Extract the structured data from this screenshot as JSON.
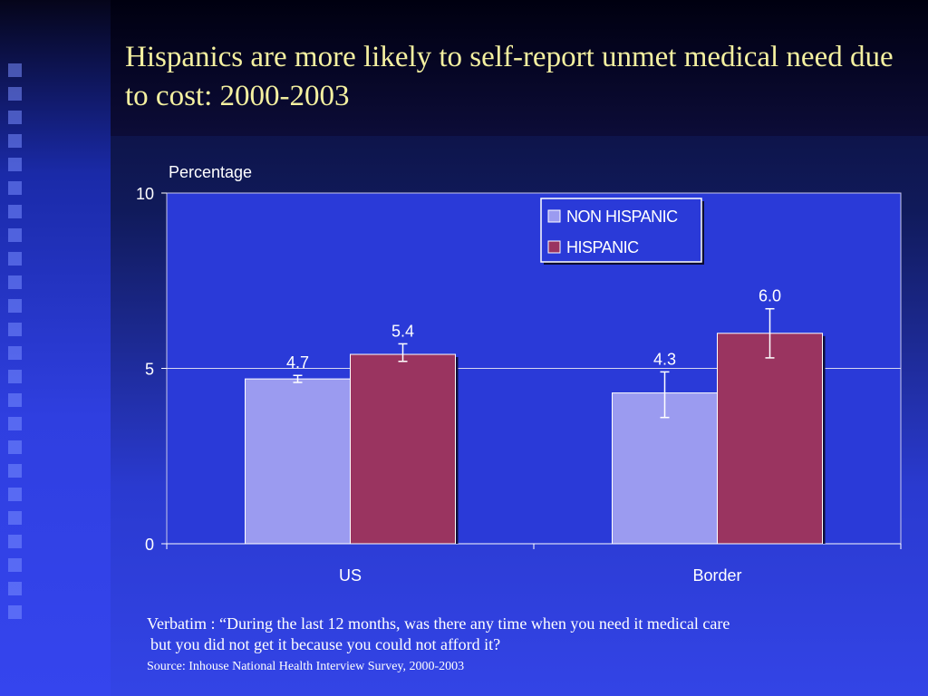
{
  "slide": {
    "title": "Hispanics are more likely to self-report unmet medical need due to cost: 2000-2003",
    "verbatim_line1": "Verbatim : “During the last 12 months, was there any time when you need it medical care",
    "verbatim_line2": "but you did not get it because you could not afford it?",
    "source": "Source: Inhouse National Health Interview Survey, 2000-2003"
  },
  "colors": {
    "title": "#f4f0a0",
    "non_hispanic": "#9b9bf0",
    "hispanic": "#9a3460",
    "plot_bg": "#2a3ad8"
  },
  "chart_data": {
    "type": "bar",
    "title": "",
    "ylabel": "Percentage",
    "xlabel": "",
    "ylim": [
      0,
      10
    ],
    "yticks": [
      0,
      5,
      10
    ],
    "categories": [
      "US",
      "Border"
    ],
    "grid": true,
    "legend_position": "top-right",
    "series": [
      {
        "name": "NON HISPANIC",
        "values": [
          4.7,
          4.3
        ],
        "labels": [
          "4.7",
          "4.3"
        ],
        "error_low": [
          4.6,
          3.6
        ],
        "error_high": [
          4.8,
          4.9
        ]
      },
      {
        "name": "HISPANIC",
        "values": [
          5.4,
          6.0
        ],
        "labels": [
          "5.4",
          "6.0"
        ],
        "error_low": [
          5.2,
          5.3
        ],
        "error_high": [
          5.7,
          6.7
        ]
      }
    ]
  }
}
